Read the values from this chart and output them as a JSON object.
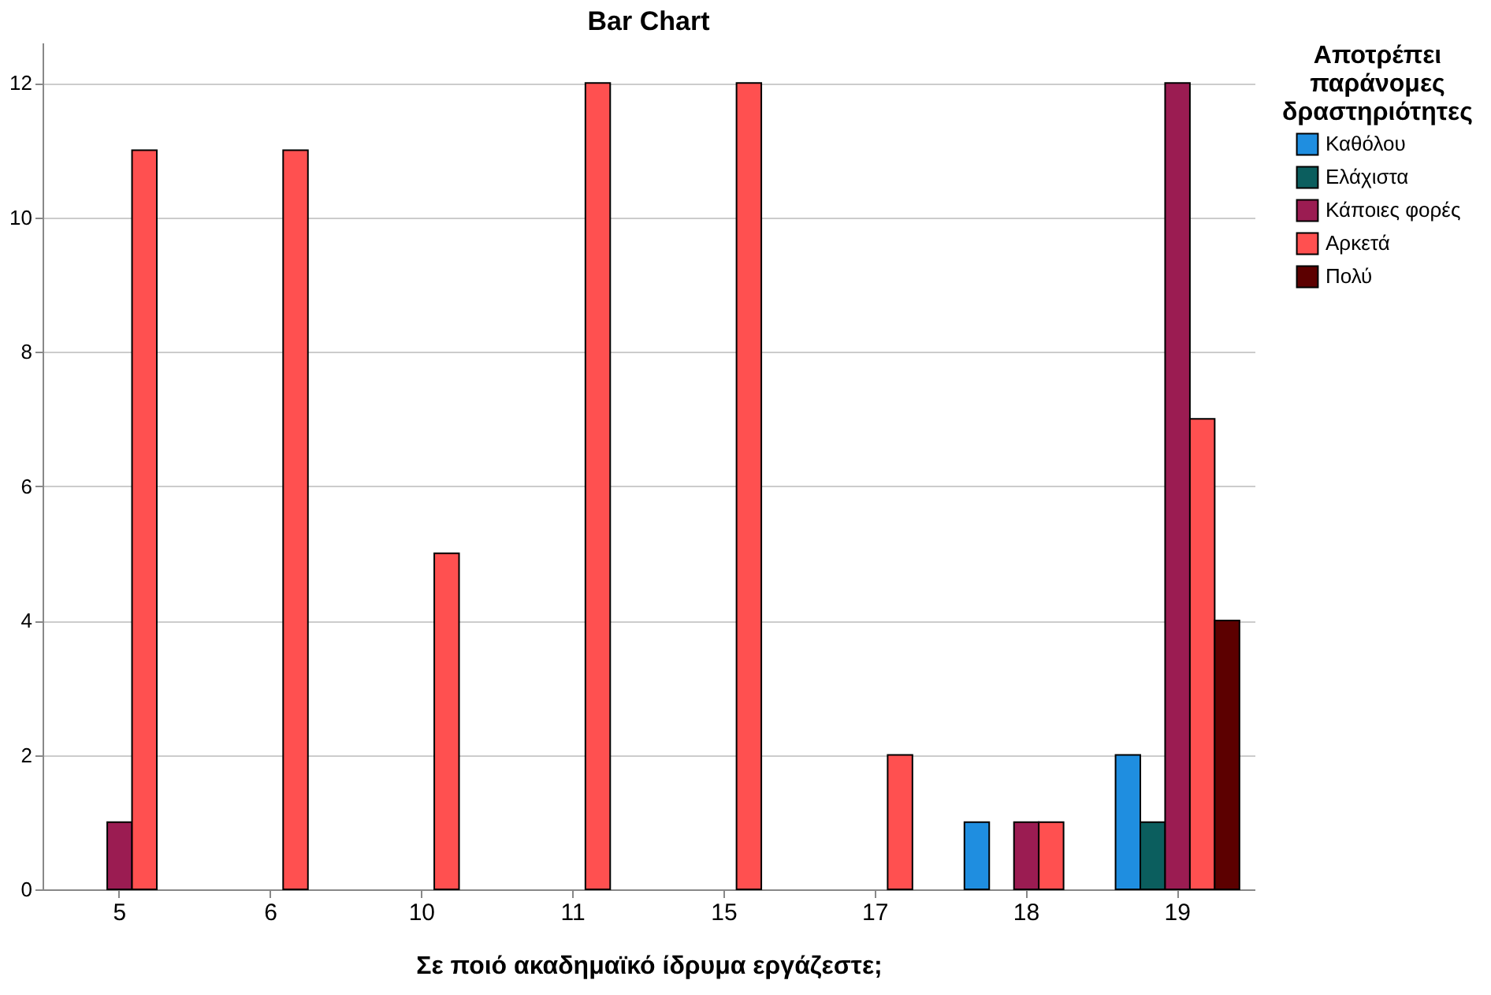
{
  "chart_data": {
    "type": "bar",
    "title": "Bar Chart",
    "xlabel": "Σε ποιό ακαδημαϊκό ίδρυμα εργάζεστε;",
    "legend_title": "Αποτρέπει παράνομες δραστηριότητες",
    "categories": [
      "5",
      "6",
      "10",
      "11",
      "15",
      "17",
      "18",
      "19"
    ],
    "series": [
      {
        "name": "Καθόλου",
        "color": "#1f8ee0",
        "values": [
          null,
          null,
          null,
          null,
          null,
          null,
          1,
          2
        ]
      },
      {
        "name": "Ελάχιστα",
        "color": "#0b5e5e",
        "values": [
          null,
          null,
          null,
          null,
          null,
          null,
          null,
          1
        ]
      },
      {
        "name": "Κάποιες φορές",
        "color": "#9b1c52",
        "values": [
          1,
          null,
          null,
          null,
          null,
          null,
          1,
          12
        ]
      },
      {
        "name": "Αρκετά",
        "color": "#ff5050",
        "values": [
          11,
          11,
          5,
          12,
          12,
          2,
          1,
          7
        ]
      },
      {
        "name": "Πολύ",
        "color": "#5c0000",
        "values": [
          null,
          null,
          null,
          null,
          null,
          null,
          null,
          4
        ]
      }
    ],
    "ylim": [
      0,
      12.6
    ],
    "yticks": [
      0,
      2,
      4,
      6,
      8,
      10,
      12
    ],
    "grid": "y",
    "legend": "right"
  }
}
